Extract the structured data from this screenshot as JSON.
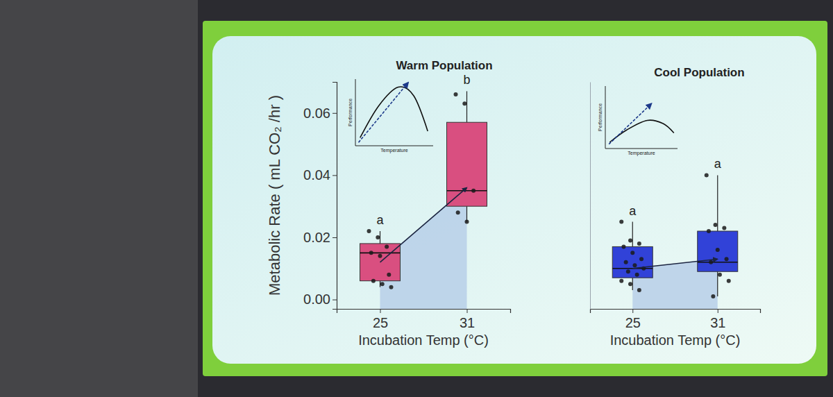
{
  "chart_data": [
    {
      "type": "box",
      "title": "Warm Population",
      "color": "#d94f80",
      "categories": [
        25,
        31
      ],
      "x_label": "Incubation Temp (°C)",
      "y_label": "Metabolic Rate ( mL CO₂ /hr )",
      "ylim": [
        -0.003,
        0.07
      ],
      "yticks": [
        {
          "value": 0,
          "label": "0.00"
        },
        0.02,
        0.04,
        0.06
      ],
      "boxes": [
        {
          "min": 0.004,
          "q1": 0.006,
          "median": 0.015,
          "q3": 0.018,
          "max": 0.022
        },
        {
          "min": 0.025,
          "q1": 0.03,
          "median": 0.035,
          "q3": 0.057,
          "max": 0.067
        }
      ],
      "points": [
        [
          0.022,
          0.02,
          0.017,
          0.015,
          0.014,
          0.008,
          0.006,
          0.005,
          0.004
        ],
        [
          0.066,
          0.063,
          0.035,
          0.028,
          0.025
        ]
      ],
      "trend": [
        0.012,
        0.036
      ],
      "letters": [
        "a",
        "b"
      ],
      "inset": {
        "x_label": "Temperature",
        "y_label": "Performance"
      }
    },
    {
      "type": "box",
      "title": "Cool Population",
      "color": "#3142d8",
      "categories": [
        25,
        31
      ],
      "x_label": "Incubation Temp (°C)",
      "ylim": [
        -0.003,
        0.07
      ],
      "tick_labels": "x",
      "boxes": [
        {
          "min": 0.003,
          "q1": 0.007,
          "median": 0.01,
          "q3": 0.017,
          "max": 0.025
        },
        {
          "min": 0.001,
          "q1": 0.009,
          "median": 0.012,
          "q3": 0.022,
          "max": 0.04
        }
      ],
      "points": [
        [
          0.025,
          0.019,
          0.018,
          0.017,
          0.015,
          0.013,
          0.012,
          0.011,
          0.01,
          0.009,
          0.008,
          0.006,
          0.005,
          0.003
        ],
        [
          0.04,
          0.024,
          0.023,
          0.022,
          0.016,
          0.013,
          0.012,
          0.008,
          0.006,
          0.001
        ]
      ],
      "trend": [
        0.01,
        0.013
      ],
      "letters": [
        "a",
        "a"
      ],
      "inset": {
        "x_label": "Temperature",
        "y_label": "Performance"
      }
    }
  ]
}
